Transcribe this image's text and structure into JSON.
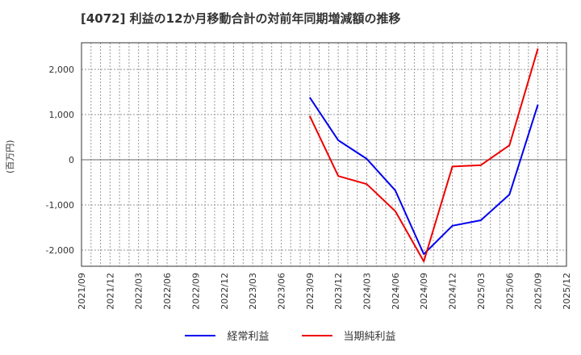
{
  "title": "[4072]  利益の12か月移動合計の対前年同期増減額の推移",
  "y_axis_label": "(百万円)",
  "legend": [
    {
      "name": "経常利益",
      "color": "#0000ee"
    },
    {
      "name": "当期純利益",
      "color": "#ee0000"
    }
  ],
  "chart_data": {
    "type": "line",
    "title": "[4072]  利益の12か月移動合計の対前年同期増減額の推移",
    "xlabel": "",
    "ylabel": "(百万円)",
    "ylim": [
      -2350,
      2600
    ],
    "yticks": [
      -2000,
      -1000,
      0,
      1000,
      2000
    ],
    "ytick_labels": [
      "-2,000",
      "-1,000",
      "0",
      "1,000",
      "2,000"
    ],
    "x_tick_labels": [
      "2021/09",
      "2021/12",
      "2022/03",
      "2022/06",
      "2022/09",
      "2022/12",
      "2023/03",
      "2023/06",
      "2023/09",
      "2023/12",
      "2024/03",
      "2024/06",
      "2024/09",
      "2024/12",
      "2025/03",
      "2025/06",
      "2025/09",
      "2025/12"
    ],
    "grid": true,
    "legend_position": "bottom",
    "x": [
      "2023/09",
      "2023/12",
      "2024/03",
      "2024/06",
      "2024/09",
      "2024/12",
      "2025/03",
      "2025/06",
      "2025/09"
    ],
    "series": [
      {
        "name": "経常利益",
        "color": "#0000ee",
        "values": [
          1380,
          430,
          20,
          -680,
          -2090,
          -1460,
          -1340,
          -770,
          1220
        ]
      },
      {
        "name": "当期純利益",
        "color": "#ee0000",
        "values": [
          970,
          -360,
          -540,
          -1140,
          -2250,
          -150,
          -120,
          320,
          2460
        ]
      }
    ]
  }
}
